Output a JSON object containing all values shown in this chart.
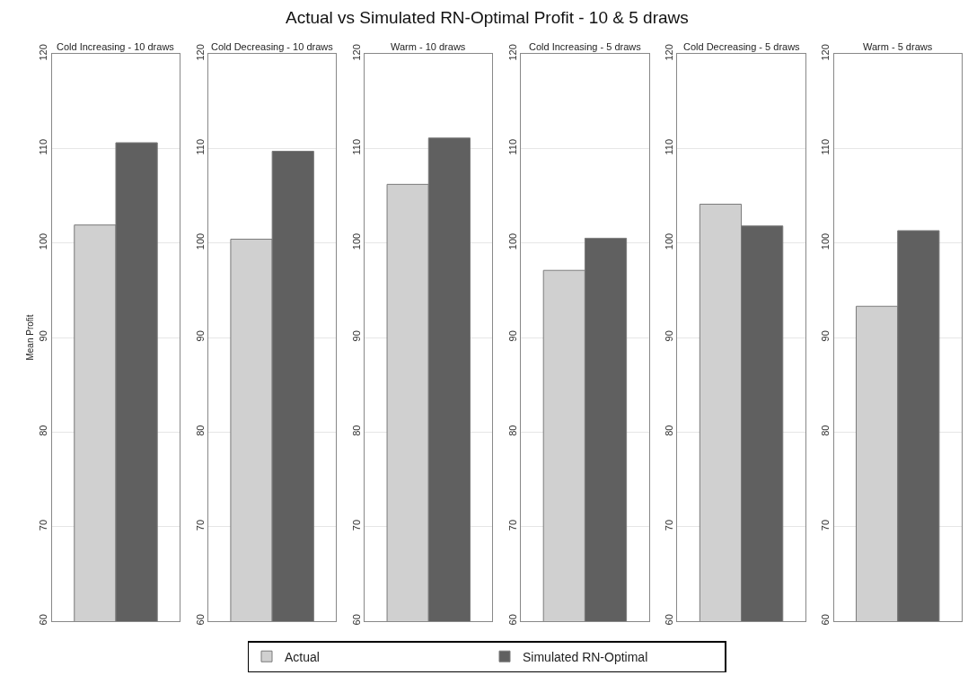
{
  "chart_data": [
    {
      "type": "bar",
      "title": "Cold Increasing - 10 draws",
      "annotations": [
        "Actual vs Simulated RN-Optimal Profit - 10 & 5 draws"
      ],
      "ylabel": "Mean Profit",
      "categories": [
        null
      ],
      "series": [
        {
          "name": "Actual",
          "color": "#d0d0d0",
          "values": [
            101.9
          ]
        },
        {
          "name": "Simulated RN-Optimal",
          "color": "#606060",
          "values": [
            110.6
          ]
        }
      ],
      "ylim": [
        60,
        120
      ],
      "yticks": [
        60,
        70,
        80,
        90,
        100,
        110,
        120
      ],
      "grid": "y",
      "legend": "bottom"
    },
    {
      "type": "bar",
      "title": "Cold Decreasing - 10 draws",
      "categories": [
        null
      ],
      "series": [
        {
          "color": "#d0d0d0",
          "values": [
            100.4
          ]
        },
        {
          "color": "#606060",
          "values": [
            109.7
          ]
        }
      ],
      "ylim": [
        60,
        120
      ],
      "yticks": [
        60,
        70,
        80,
        90,
        100,
        110,
        120
      ],
      "grid": "y"
    },
    {
      "type": "bar",
      "title": "Warm - 10 draws",
      "categories": [
        null
      ],
      "series": [
        {
          "color": "#d0d0d0",
          "values": [
            106.2
          ]
        },
        {
          "color": "#606060",
          "values": [
            111.1
          ]
        }
      ],
      "ylim": [
        60,
        120
      ],
      "yticks": [
        60,
        70,
        80,
        90,
        100,
        110,
        120
      ],
      "grid": "y"
    },
    {
      "type": "bar",
      "title": "Cold Increasing - 5 draws",
      "categories": [
        null
      ],
      "series": [
        {
          "color": "#d0d0d0",
          "values": [
            97.1
          ]
        },
        {
          "color": "#606060",
          "values": [
            100.5
          ]
        }
      ],
      "ylim": [
        60,
        120
      ],
      "yticks": [
        60,
        70,
        80,
        90,
        100,
        110,
        120
      ],
      "grid": "y"
    },
    {
      "type": "bar",
      "title": "Cold Decreasing - 5 draws",
      "categories": [
        null
      ],
      "series": [
        {
          "color": "#d0d0d0",
          "values": [
            104.1
          ]
        },
        {
          "color": "#606060",
          "values": [
            101.8
          ]
        }
      ],
      "ylim": [
        60,
        120
      ],
      "yticks": [
        60,
        70,
        80,
        90,
        100,
        110,
        120
      ],
      "grid": "y"
    },
    {
      "type": "bar",
      "title": "Warm - 5 draws",
      "categories": [
        null
      ],
      "series": [
        {
          "color": "#d0d0d0",
          "values": [
            93.3
          ]
        },
        {
          "color": "#606060",
          "values": [
            101.3
          ]
        }
      ],
      "ylim": [
        60,
        120
      ],
      "yticks": [
        60,
        70,
        80,
        90,
        100,
        110,
        120
      ],
      "grid": "y"
    }
  ]
}
